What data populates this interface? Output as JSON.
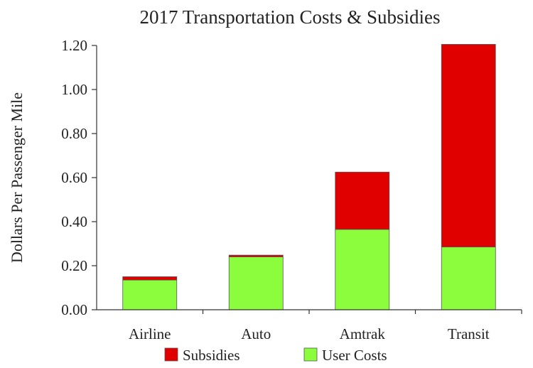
{
  "chart_data": {
    "type": "bar",
    "stacked": true,
    "title": "2017 Transportation Costs & Subsidies",
    "xlabel": "",
    "ylabel": "Dollars Per Passenger Mile",
    "ylim": [
      0,
      1.2
    ],
    "yticks": [
      "0.00",
      "0.20",
      "0.40",
      "0.60",
      "0.80",
      "1.00",
      "1.20"
    ],
    "categories": [
      "Airline",
      "Auto",
      "Amtrak",
      "Transit"
    ],
    "series": [
      {
        "name": "User Costs",
        "color": "#8cfd3c",
        "values": [
          0.135,
          0.24,
          0.365,
          0.285
        ]
      },
      {
        "name": "Subsidies",
        "color": "#e00000",
        "values": [
          0.015,
          0.008,
          0.26,
          0.92
        ]
      }
    ],
    "legend_order": [
      "Subsidies",
      "User Costs"
    ],
    "legend_position": "bottom",
    "grid": false
  }
}
